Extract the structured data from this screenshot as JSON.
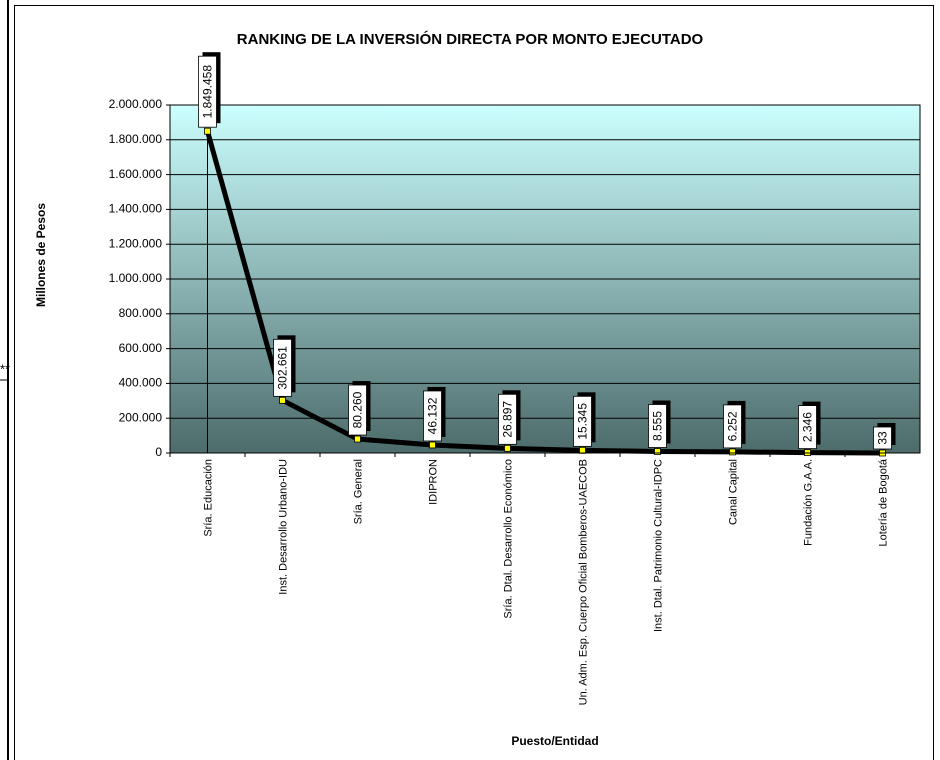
{
  "chart_data": {
    "type": "line",
    "title": "RANKING DE LA INVERSIÓN DIRECTA POR MONTO EJECUTADO",
    "y_label": "Millones de Pesos",
    "x_label": "Puesto/Entidad",
    "annotation": "**",
    "categories": [
      "Sría. Educación",
      "Inst. Desarrollo Urbano-IDU",
      "Sría. General",
      "IDIPRON",
      "Sría. Dtal. Desarrollo Económico",
      "Un. Adm. Esp. Cuerpo Oficial Bomberos-UAECOB",
      "Inst. Dtal. Patrimonio Cultural-IDPC",
      "Canal Capital",
      "Fundación G.A.A.",
      "Lotería de Bogotá"
    ],
    "values": [
      1849458,
      302661,
      80260,
      46132,
      26897,
      15345,
      8555,
      6252,
      2346,
      33
    ],
    "value_labels": [
      "1.849.458",
      "302.661",
      "80.260",
      "46.132",
      "26.897",
      "15.345",
      "8.555",
      "6.252",
      "2.346",
      "33"
    ],
    "color": "#000000",
    "marker_color": "#ffff00",
    "ylim": [
      0,
      2000000
    ],
    "yticks": [
      0,
      {
        "value": 200000,
        "label": "200.000"
      },
      {
        "value": 400000,
        "label": "400.000"
      },
      {
        "value": 600000,
        "label": "600.000"
      },
      {
        "value": 800000,
        "label": "800.000"
      },
      {
        "value": 1000000,
        "label": "1.000.000"
      },
      {
        "value": 1200000,
        "label": "1.200.000"
      },
      {
        "value": 1400000,
        "label": "1.400.000"
      },
      {
        "value": 1600000,
        "label": "1.600.000"
      },
      {
        "value": 1800000,
        "label": "1.800.000"
      },
      {
        "value": 2000000,
        "label": "2.000.000"
      }
    ],
    "grid": true
  }
}
